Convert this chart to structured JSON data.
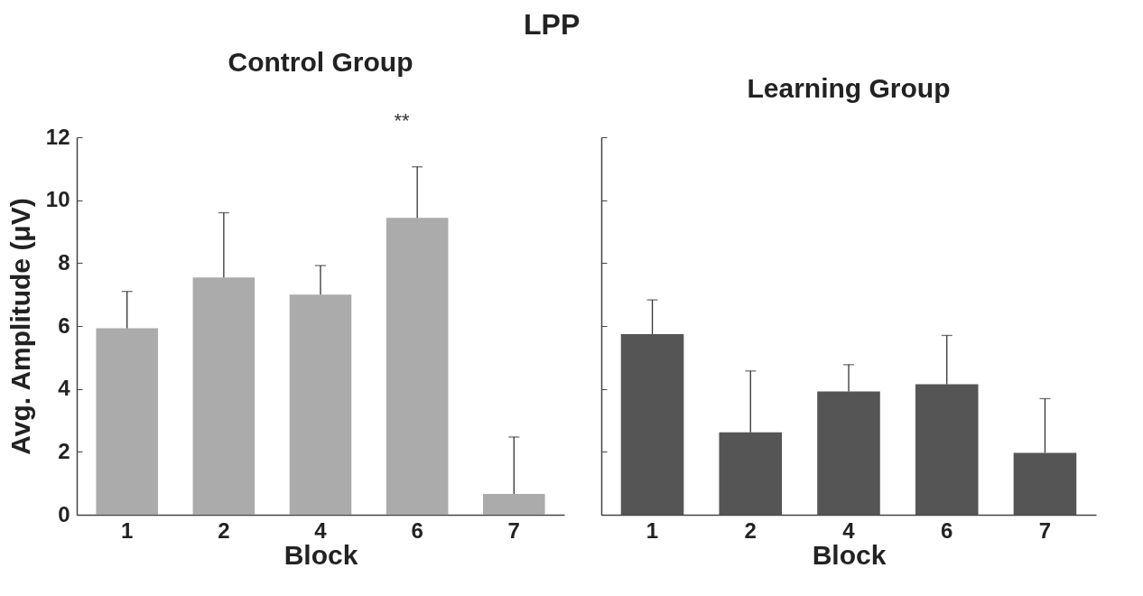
{
  "chart_data": [
    {
      "type": "bar",
      "title": "Control Group",
      "xlabel": "Block",
      "ylabel": "Avg. Amplitude (μV)",
      "categories": [
        "1",
        "2",
        "4",
        "6",
        "7"
      ],
      "values": [
        5.93,
        7.54,
        7.0,
        9.44,
        0.66
      ],
      "color": "#aaabaa",
      "errors": [
        [
          5.93,
          7.1
        ],
        [
          7.54,
          9.6
        ],
        [
          7.0,
          7.92
        ],
        [
          9.44,
          11.06
        ],
        [
          0.66,
          2.47
        ]
      ],
      "ylim": [
        0,
        12
      ],
      "yticks": [
        0,
        2,
        4,
        6,
        8,
        10,
        12
      ],
      "grid": false,
      "annotations": [
        "LPP",
        "**"
      ]
    },
    {
      "type": "bar",
      "title": "Learning Group",
      "xlabel": "Block",
      "categories": [
        "1",
        "2",
        "4",
        "6",
        "7"
      ],
      "values": [
        5.74,
        2.62,
        3.92,
        4.15,
        1.97
      ],
      "color": "#555555",
      "errors": [
        [
          5.74,
          6.83
        ],
        [
          2.62,
          4.57
        ],
        [
          3.92,
          4.77
        ],
        [
          4.15,
          5.7
        ],
        [
          1.97,
          3.69
        ]
      ],
      "ylim": [
        0,
        12
      ],
      "yticks": [
        0,
        2,
        4,
        6,
        8,
        10,
        12
      ],
      "tick_labels": "x",
      "grid": false
    }
  ]
}
